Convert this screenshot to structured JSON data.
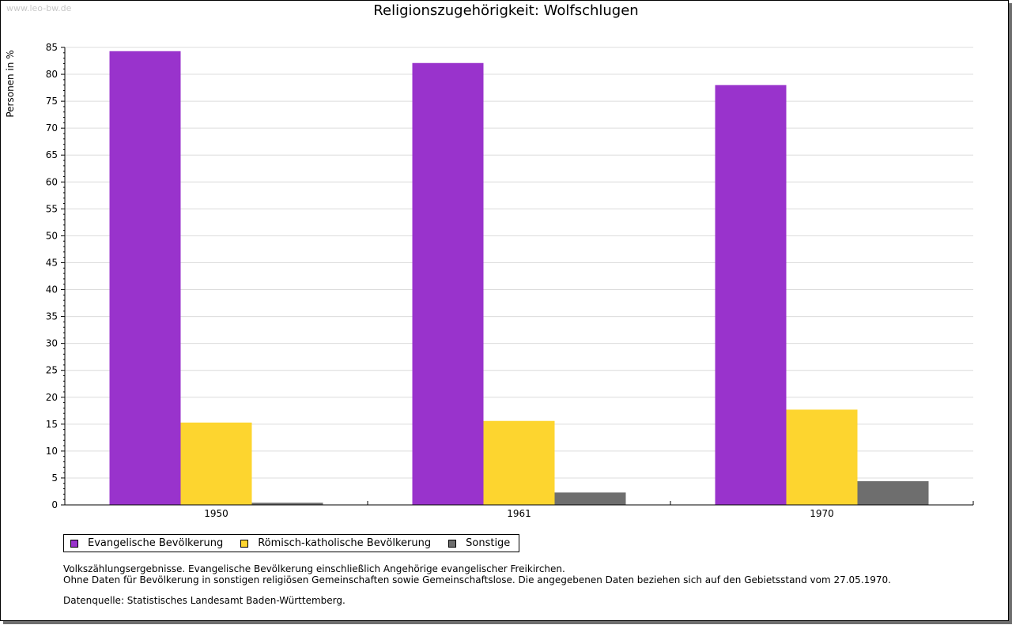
{
  "watermark": "www.leo-bw.de",
  "colors": {
    "evangelisch": "#9933cc",
    "katholisch": "#fdd52f",
    "sonstige": "#6e6e6e",
    "grid": "#dcdcdc"
  },
  "chart_data": {
    "type": "bar",
    "title": "Religionszugehörigkeit: Wolfschlugen",
    "xlabel": "",
    "ylabel": "Personen in %",
    "ylim": [
      0,
      85
    ],
    "yticks": [
      0,
      5,
      10,
      15,
      20,
      25,
      30,
      35,
      40,
      45,
      50,
      55,
      60,
      65,
      70,
      75,
      80,
      85
    ],
    "grid": true,
    "legend_position": "bottom-left",
    "categories": [
      "1950",
      "1961",
      "1970"
    ],
    "series": [
      {
        "name": "Evangelische Bevölkerung",
        "color_key": "evangelisch",
        "values": [
          84.3,
          82.1,
          78.0
        ]
      },
      {
        "name": "Römisch-katholische Bevölkerung",
        "color_key": "katholisch",
        "values": [
          15.3,
          15.6,
          17.7
        ]
      },
      {
        "name": "Sonstige",
        "color_key": "sonstige",
        "values": [
          0.4,
          2.3,
          4.4
        ]
      }
    ]
  },
  "notes": {
    "line1": "Volkszählungsergebnisse. Evangelische Bevölkerung einschließlich Angehörige evangelischer Freikirchen.",
    "line2": "Ohne Daten für Bevölkerung in sonstigen religiösen Gemeinschaften sowie Gemeinschaftslose. Die angegebenen Daten beziehen sich auf den Gebietsstand vom 27.05.1970.",
    "source": "Datenquelle: Statistisches Landesamt Baden-Württemberg."
  }
}
